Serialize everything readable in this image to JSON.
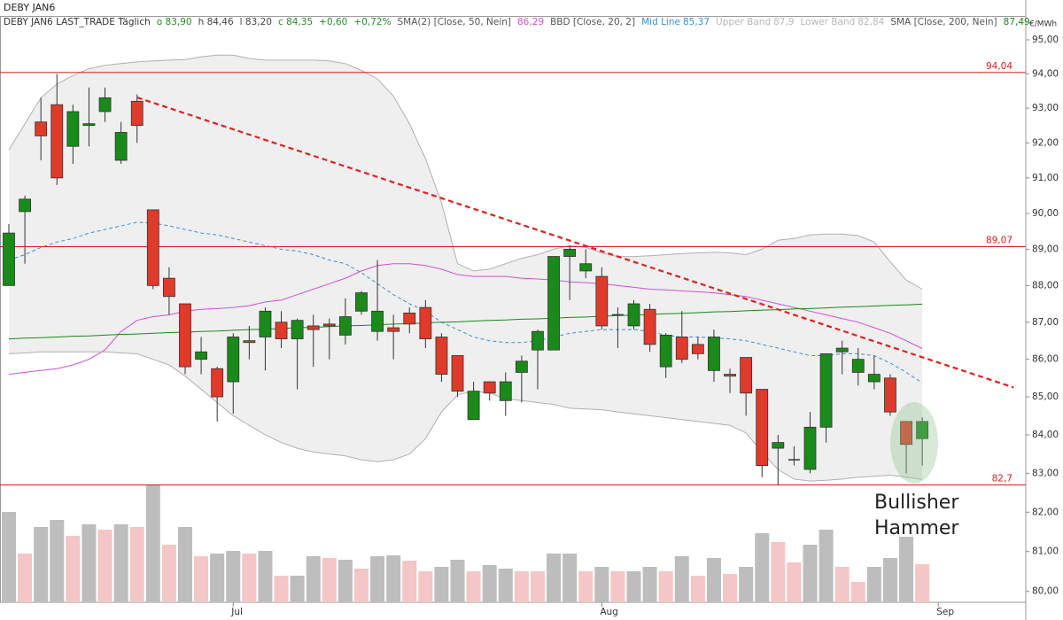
{
  "chart_data": {
    "type": "candlestick",
    "title": "DEBY JAN6",
    "legend_header": "DEBY JAN6 LAST_TRADE Täglich",
    "quote": [
      {
        "label": "o 83,90",
        "color": "#2a8a2a"
      },
      {
        "label": "h 84,46",
        "color": "#444444"
      },
      {
        "label": "l 83,20",
        "color": "#444444"
      },
      {
        "label": "c 84,35",
        "color": "#2a8a2a"
      },
      {
        "label": "+0,60",
        "color": "#2a8a2a"
      },
      {
        "label": "+0,72%",
        "color": "#2a8a2a"
      }
    ],
    "unit": "€/MWh",
    "log_scale": true,
    "ylim": [
      79.73,
      95.71
    ],
    "yticks": [
      {
        "value": 80,
        "label": "80,00"
      },
      {
        "value": 81,
        "label": "81,00"
      },
      {
        "value": 82,
        "label": "82,00"
      },
      {
        "value": 83,
        "label": "83,00"
      },
      {
        "value": 84,
        "label": "84,00"
      },
      {
        "value": 85,
        "label": "85,00"
      },
      {
        "value": 86,
        "label": "86,00"
      },
      {
        "value": 87,
        "label": "87,00"
      },
      {
        "value": 88,
        "label": "88,00"
      },
      {
        "value": 89,
        "label": "89,00"
      },
      {
        "value": 90,
        "label": "90,00"
      },
      {
        "value": 91,
        "label": "91,00"
      },
      {
        "value": 92,
        "label": "92,00"
      },
      {
        "value": 93,
        "label": "93,00"
      },
      {
        "value": 94,
        "label": "94,00"
      },
      {
        "value": 95,
        "label": "95,00"
      }
    ],
    "categories": [
      null,
      null,
      null,
      null,
      null,
      null,
      null,
      null,
      null,
      null,
      null,
      null,
      null,
      null,
      "Jul",
      null,
      null,
      null,
      null,
      null,
      null,
      null,
      null,
      null,
      null,
      null,
      null,
      null,
      null,
      null,
      null,
      null,
      null,
      null,
      null,
      null,
      null,
      "Aug",
      null,
      null,
      null,
      null,
      null,
      null,
      null,
      null,
      null,
      null,
      null,
      null,
      null,
      null,
      null,
      null,
      null,
      null,
      null,
      null,
      "Sep"
    ],
    "up_color": "#1a8a1a",
    "down_color": "#e03a2a",
    "open": [
      88.0,
      90.05,
      92.6,
      93.1,
      91.9,
      92.5,
      92.9,
      91.5,
      93.2,
      90.1,
      88.2,
      87.5,
      86.0,
      85.75,
      85.4,
      86.5,
      86.6,
      87.0,
      86.55,
      86.9,
      86.95,
      86.65,
      87.3,
      86.75,
      86.85,
      87.25,
      87.4,
      86.6,
      86.1,
      84.4,
      85.4,
      84.9,
      85.65,
      86.25,
      86.25,
      88.8,
      88.4,
      88.25,
      87.2,
      86.9,
      87.35,
      85.8,
      86.6,
      86.4,
      85.7,
      85.6,
      86.05,
      85.2,
      83.65,
      83.35,
      83.1,
      84.2,
      86.2,
      85.65,
      85.4,
      85.5,
      84.35,
      83.9,
      null
    ],
    "high": [
      89.7,
      90.5,
      93.3,
      94.0,
      93.1,
      93.6,
      93.6,
      92.6,
      93.4,
      90.1,
      88.5,
      87.5,
      86.6,
      85.8,
      86.7,
      86.9,
      87.4,
      87.3,
      87.1,
      87.2,
      87.1,
      87.65,
      87.85,
      88.7,
      87.2,
      87.4,
      87.6,
      86.7,
      86.1,
      85.4,
      85.4,
      85.65,
      86.1,
      86.8,
      88.8,
      89.1,
      89.0,
      88.5,
      87.4,
      87.6,
      87.5,
      86.7,
      87.3,
      86.6,
      86.8,
      85.75,
      86.05,
      85.2,
      84.0,
      83.7,
      84.6,
      86.15,
      86.5,
      86.3,
      86.1,
      85.6,
      84.35,
      84.46,
      null
    ],
    "low": [
      88.0,
      88.6,
      91.5,
      90.8,
      91.4,
      91.9,
      92.6,
      91.4,
      92.0,
      87.9,
      87.2,
      85.6,
      85.6,
      84.35,
      84.55,
      86.0,
      85.7,
      86.3,
      85.2,
      85.8,
      86.0,
      86.4,
      87.2,
      86.5,
      86.0,
      86.7,
      86.3,
      85.4,
      85.0,
      84.4,
      84.9,
      84.5,
      84.85,
      85.2,
      86.25,
      87.6,
      88.2,
      86.8,
      86.3,
      86.8,
      86.2,
      85.5,
      85.9,
      86.0,
      85.4,
      85.1,
      84.5,
      82.9,
      82.7,
      83.2,
      83.0,
      83.8,
      85.6,
      85.3,
      85.2,
      84.5,
      83.0,
      83.2,
      null
    ],
    "close": [
      89.45,
      90.4,
      92.2,
      91.0,
      92.9,
      92.55,
      93.3,
      92.3,
      92.5,
      88.0,
      87.7,
      85.8,
      86.2,
      85.0,
      86.6,
      86.45,
      87.3,
      86.55,
      87.05,
      86.8,
      86.9,
      87.15,
      87.8,
      87.3,
      86.75,
      86.95,
      86.55,
      85.6,
      85.15,
      85.15,
      85.1,
      85.4,
      85.95,
      86.75,
      88.8,
      89.0,
      88.6,
      86.9,
      87.2,
      87.5,
      86.4,
      86.65,
      86.0,
      86.15,
      86.6,
      85.55,
      85.1,
      83.2,
      83.8,
      83.35,
      84.2,
      86.15,
      86.3,
      86.0,
      85.6,
      84.6,
      83.75,
      84.35,
      null
    ],
    "band_group": "BBD [Close, 20, 2]",
    "band_fill": "#efefef",
    "series": [
      {
        "name": "SMA(2) [Close, 50, Nein]",
        "legend_value": "86,29",
        "color": "#d050d0",
        "name_color": "#555555",
        "values": [
          85.6,
          85.65,
          85.7,
          85.75,
          85.85,
          86.0,
          86.25,
          86.75,
          87.05,
          87.15,
          87.2,
          87.3,
          87.35,
          87.37,
          87.4,
          87.45,
          87.55,
          87.6,
          87.75,
          87.9,
          88.05,
          88.2,
          88.4,
          88.55,
          88.6,
          88.6,
          88.55,
          88.45,
          88.3,
          88.25,
          88.25,
          88.25,
          88.2,
          88.18,
          88.15,
          88.1,
          88.08,
          88.05,
          88.0,
          87.95,
          87.9,
          87.88,
          87.85,
          87.83,
          87.8,
          87.75,
          87.7,
          87.6,
          87.5,
          87.4,
          87.3,
          87.2,
          87.1,
          87.0,
          86.85,
          86.7,
          86.5,
          86.29,
          null
        ]
      },
      {
        "name": "Mid Line",
        "legend_value": "85,37",
        "color": "#3a8fd8",
        "name_color": "#3a8fd8",
        "role": "mid",
        "dashed": true,
        "values": [
          88.7,
          88.85,
          89.05,
          89.2,
          89.3,
          89.45,
          89.55,
          89.65,
          89.75,
          89.73,
          89.65,
          89.55,
          89.45,
          89.4,
          89.3,
          89.2,
          89.1,
          89.0,
          88.95,
          88.85,
          88.7,
          88.6,
          88.35,
          88.05,
          87.75,
          87.5,
          87.3,
          87.0,
          86.8,
          86.6,
          86.5,
          86.45,
          86.45,
          86.5,
          86.6,
          86.7,
          86.75,
          86.8,
          86.8,
          86.8,
          86.75,
          86.65,
          86.6,
          86.6,
          86.58,
          86.55,
          86.5,
          86.4,
          86.3,
          86.2,
          86.1,
          86.1,
          86.15,
          86.15,
          86.1,
          85.9,
          85.65,
          85.37,
          null
        ]
      },
      {
        "name": "Upper Band",
        "legend_value": "87,9",
        "color": "#b0b0b0",
        "name_color": "#b8b8b8",
        "role": "upper",
        "values": [
          91.8,
          92.55,
          93.3,
          93.7,
          93.95,
          94.15,
          94.25,
          94.3,
          94.35,
          94.38,
          94.4,
          94.42,
          94.5,
          94.55,
          94.55,
          94.45,
          94.4,
          94.4,
          94.4,
          94.4,
          94.38,
          94.3,
          94.1,
          93.85,
          93.35,
          92.55,
          91.55,
          90.3,
          88.6,
          88.4,
          88.45,
          88.6,
          88.75,
          88.85,
          89.0,
          89.1,
          89.05,
          88.9,
          88.8,
          88.8,
          88.82,
          88.85,
          88.88,
          88.9,
          88.92,
          88.9,
          88.85,
          89.0,
          89.25,
          89.3,
          89.4,
          89.42,
          89.42,
          89.38,
          89.2,
          88.65,
          88.15,
          87.9,
          null
        ]
      },
      {
        "name": "Lower Band",
        "legend_value": "82,84",
        "color": "#b0b0b0",
        "name_color": "#b8b8b8",
        "role": "lower",
        "values": [
          86.15,
          86.17,
          86.2,
          86.2,
          86.2,
          86.2,
          86.2,
          86.17,
          86.15,
          86.0,
          85.85,
          85.55,
          85.2,
          84.85,
          84.5,
          84.25,
          84.0,
          83.8,
          83.65,
          83.55,
          83.5,
          83.45,
          83.35,
          83.3,
          83.35,
          83.5,
          83.9,
          84.6,
          85.05,
          85.15,
          85.1,
          84.95,
          84.9,
          84.85,
          84.8,
          84.7,
          84.68,
          84.66,
          84.6,
          84.55,
          84.5,
          84.45,
          84.4,
          84.35,
          84.3,
          84.25,
          84.05,
          83.55,
          83.1,
          82.85,
          82.8,
          82.82,
          82.85,
          82.9,
          82.92,
          82.95,
          82.9,
          82.84,
          null
        ]
      },
      {
        "name": "SMA [Close, 200, Nein]",
        "legend_value": "87,49",
        "color": "#1a8a1a",
        "name_color": "#555555",
        "values": [
          86.55,
          86.57,
          86.58,
          86.6,
          86.62,
          86.63,
          86.65,
          86.67,
          86.68,
          86.7,
          86.72,
          86.73,
          86.75,
          86.76,
          86.78,
          86.8,
          86.81,
          86.83,
          86.85,
          86.86,
          86.88,
          86.9,
          86.91,
          86.93,
          86.95,
          86.96,
          86.98,
          87.0,
          87.01,
          87.03,
          87.05,
          87.06,
          87.08,
          87.09,
          87.11,
          87.13,
          87.14,
          87.16,
          87.18,
          87.19,
          87.21,
          87.23,
          87.24,
          87.26,
          87.28,
          87.29,
          87.31,
          87.33,
          87.34,
          87.36,
          87.37,
          87.39,
          87.41,
          87.42,
          87.44,
          87.46,
          87.47,
          87.49,
          null
        ]
      }
    ],
    "volume": {
      "values": [
        102,
        55,
        85,
        93,
        75,
        88,
        82,
        88,
        85,
        132,
        65,
        85,
        52,
        55,
        58,
        55,
        58,
        30,
        30,
        52,
        50,
        48,
        38,
        52,
        53,
        47,
        35,
        40,
        48,
        35,
        42,
        38,
        35,
        35,
        55,
        55,
        35,
        40,
        35,
        35,
        40,
        35,
        52,
        30,
        50,
        32,
        40,
        78,
        68,
        45,
        65,
        82,
        40,
        23,
        40,
        50,
        74,
        43,
        null
      ],
      "colors": [
        "#bdbdbd",
        "#f4c6c6",
        "#bdbdbd",
        "#bdbdbd",
        "#f4c6c6",
        "#bdbdbd",
        "#f4c6c6",
        "#bdbdbd",
        "#f4c6c6",
        "#bdbdbd",
        "#f4c6c6",
        "#bdbdbd",
        "#f4c6c6",
        "#bdbdbd",
        "#bdbdbd",
        "#f4c6c6",
        "#bdbdbd",
        "#f4c6c6",
        "#bdbdbd",
        "#bdbdbd",
        "#f4c6c6",
        "#bdbdbd",
        "#f4c6c6",
        "#bdbdbd",
        "#bdbdbd",
        "#f4c6c6",
        "#f4c6c6",
        "#bdbdbd",
        "#bdbdbd",
        "#f4c6c6",
        "#bdbdbd",
        "#bdbdbd",
        "#f4c6c6",
        "#f4c6c6",
        "#bdbdbd",
        "#bdbdbd",
        "#f4c6c6",
        "#bdbdbd",
        "#f4c6c6",
        "#bdbdbd",
        "#bdbdbd",
        "#f4c6c6",
        "#bdbdbd",
        "#f4c6c6",
        "#bdbdbd",
        "#f4c6c6",
        "#bdbdbd",
        "#bdbdbd",
        "#f4c6c6",
        "#f4c6c6",
        "#bdbdbd",
        "#bdbdbd",
        "#f4c6c6",
        "#f4c6c6",
        "#bdbdbd",
        "#bdbdbd",
        "#bdbdbd",
        "#f4c6c6",
        null
      ]
    },
    "hlines": [
      {
        "value": 94.04,
        "label": "94,04"
      },
      {
        "value": 89.07,
        "label": "89,07"
      },
      {
        "value": 82.7,
        "label": "82,7"
      }
    ],
    "hline_color": "#d42020",
    "trendline": {
      "x": [
        8,
        62.7
      ],
      "values": [
        93.31,
        85.25
      ],
      "color": "#e02020"
    },
    "annotation": [
      "Bullisher",
      "Hammer"
    ]
  }
}
